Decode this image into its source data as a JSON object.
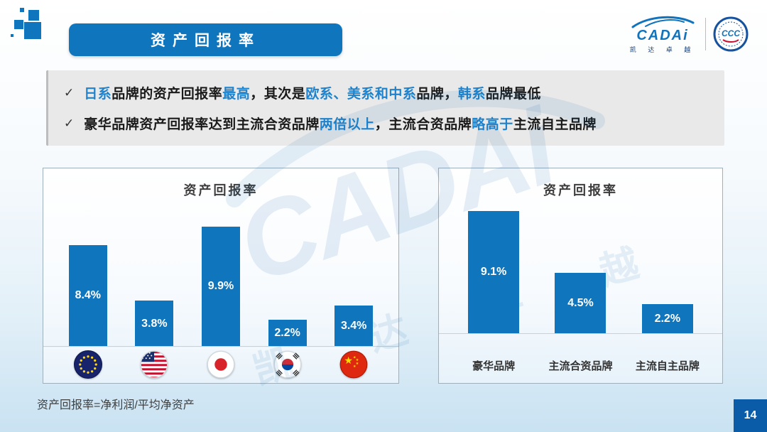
{
  "header": {
    "title": "资产回报率"
  },
  "logo": {
    "brand": "CADAi",
    "brand_sub": "凯 达 卓 越"
  },
  "watermark": {
    "main": "CADAi",
    "sub": "凯 达 卓 越"
  },
  "bullets": [
    {
      "segments": [
        {
          "text": "日系",
          "highlight": true
        },
        {
          "text": "品牌的资产回报率",
          "highlight": false
        },
        {
          "text": "最高",
          "highlight": true
        },
        {
          "text": "，其次是",
          "highlight": false
        },
        {
          "text": "欧系、美系和中系",
          "highlight": true
        },
        {
          "text": "品牌，",
          "highlight": false
        },
        {
          "text": "韩系",
          "highlight": true
        },
        {
          "text": "品牌最低",
          "highlight": false
        }
      ]
    },
    {
      "segments": [
        {
          "text": "豪华品牌资产回报率达到主流合资品牌",
          "highlight": false
        },
        {
          "text": "两倍以上",
          "highlight": true
        },
        {
          "text": "，主流合资品牌",
          "highlight": false
        },
        {
          "text": "略高于",
          "highlight": true
        },
        {
          "text": "主流自主品牌",
          "highlight": false
        }
      ]
    }
  ],
  "chart_data": [
    {
      "type": "bar",
      "title": "资产回报率",
      "categories": [
        "欧系",
        "美系",
        "日系",
        "韩系",
        "中系"
      ],
      "category_icons": [
        "eu-flag-icon",
        "us-flag-icon",
        "japan-flag-icon",
        "korea-flag-icon",
        "china-flag-icon"
      ],
      "values": [
        8.4,
        3.8,
        9.9,
        2.2,
        3.4
      ],
      "value_labels": [
        "8.4%",
        "3.8%",
        "9.9%",
        "2.2%",
        "3.4%"
      ],
      "unit": "%",
      "ylim": [
        0,
        12
      ],
      "bar_color": "#0F76BE",
      "grid": false,
      "legend": "none"
    },
    {
      "type": "bar",
      "title": "资产回报率",
      "categories": [
        "豪华品牌",
        "主流合资品牌",
        "主流自主品牌"
      ],
      "values": [
        9.1,
        4.5,
        2.2
      ],
      "value_labels": [
        "9.1%",
        "4.5%",
        "2.2%"
      ],
      "unit": "%",
      "ylim": [
        0,
        10.5
      ],
      "bar_color": "#0F76BE",
      "grid": false,
      "legend": "none"
    }
  ],
  "footer": {
    "footnote": "资产回报率=净利润/平均净资产",
    "page_number": "14"
  },
  "colors": {
    "accent_blue": "#0F76BE",
    "highlight_blue": "#1E82CC",
    "page_badge_blue": "#0B5CA8"
  }
}
